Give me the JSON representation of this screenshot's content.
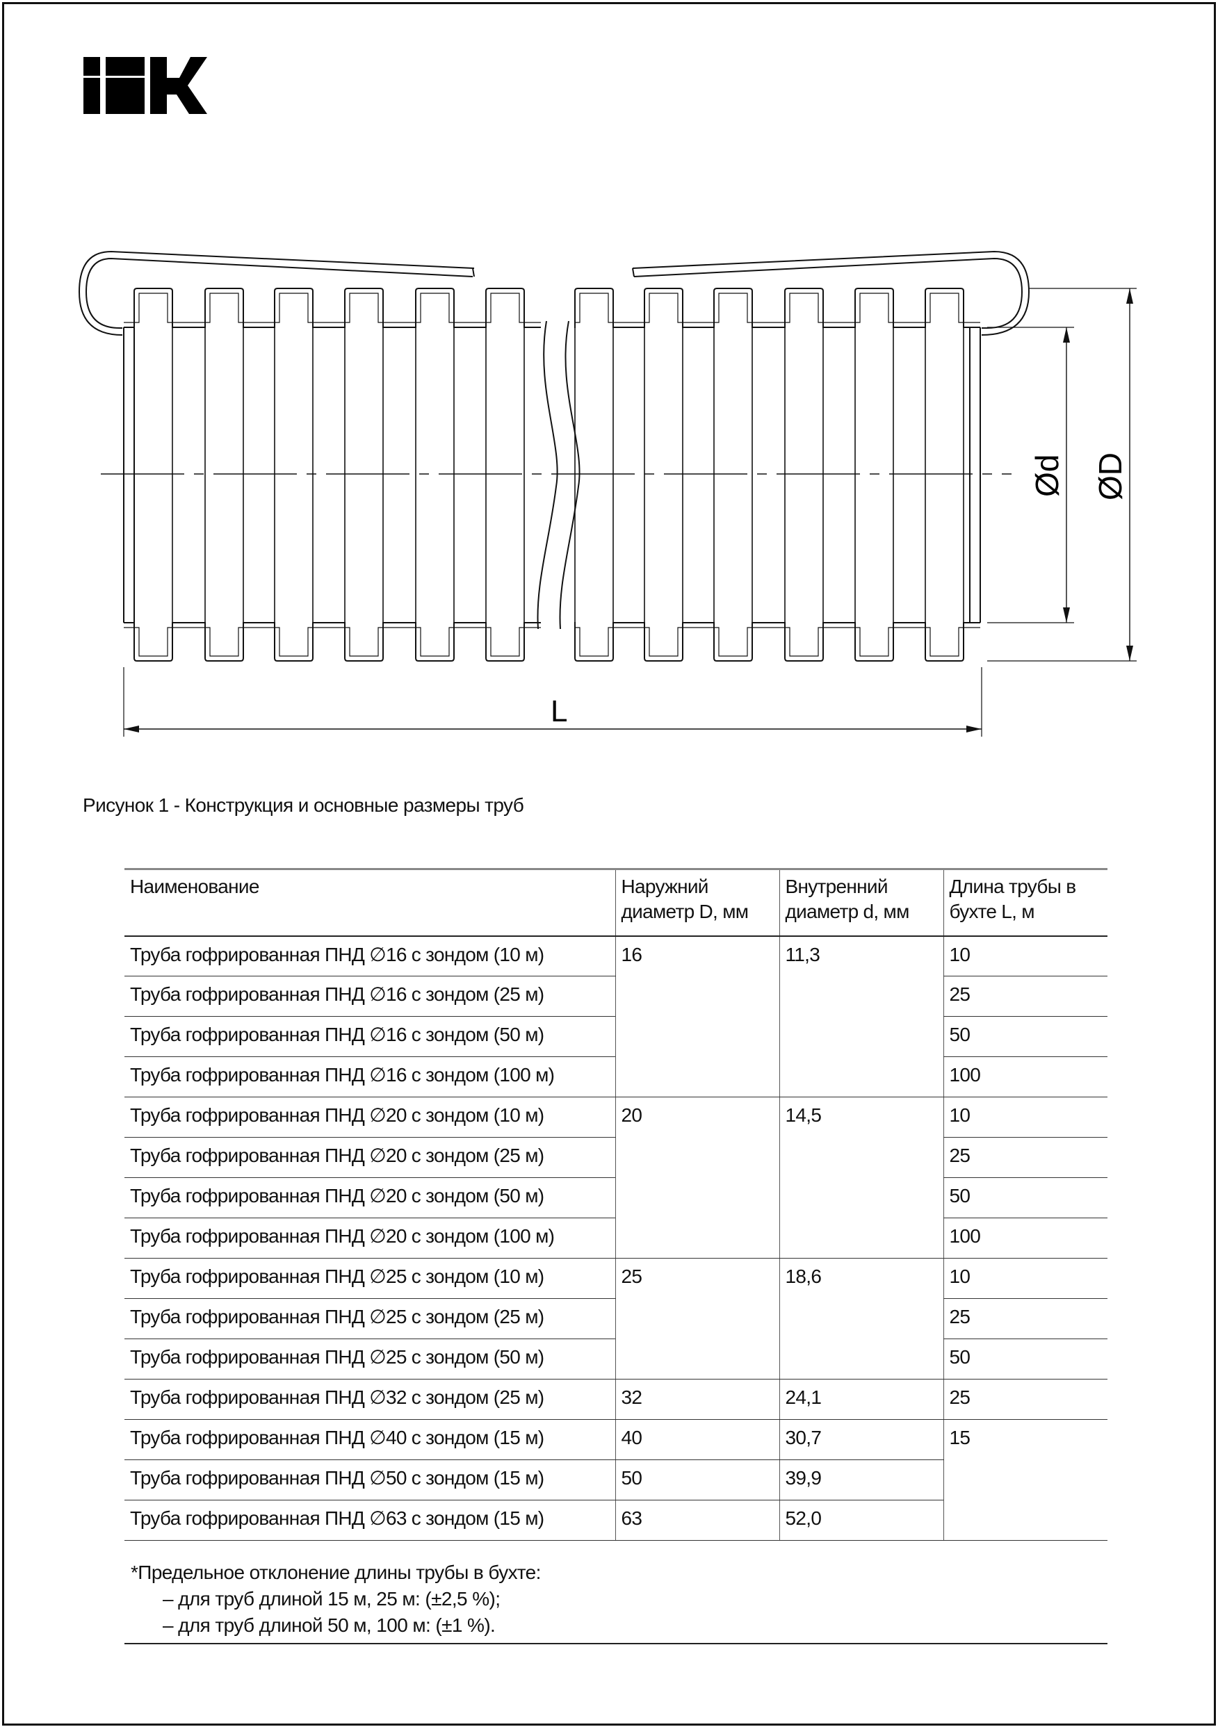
{
  "logo": {
    "text": "IEK"
  },
  "figure": {
    "label_inner_diameter": "Ød",
    "label_outer_diameter": "ØD",
    "label_length": "L",
    "caption": "Рисунок 1 - Конструкция и основные размеры труб"
  },
  "table": {
    "headers": [
      "Наименование",
      "Наружний диаметр D, мм",
      "Внутренний диаметр d, мм",
      "Длина трубы в бухте L, м"
    ],
    "rows": [
      {
        "name": "Труба гофрированная ПНД ∅16 с зондом (10 м)",
        "D": "16",
        "d": "11,3",
        "L": "10"
      },
      {
        "name": "Труба гофрированная ПНД ∅16 с зондом (25 м)",
        "L": "25"
      },
      {
        "name": "Труба гофрированная ПНД ∅16 с зондом (50 м)",
        "L": "50"
      },
      {
        "name": "Труба гофрированная ПНД ∅16 с зондом (100 м)",
        "L": "100"
      },
      {
        "name": "Труба гофрированная ПНД ∅20 с зондом (10 м)",
        "D": "20",
        "d": "14,5",
        "L": "10"
      },
      {
        "name": "Труба гофрированная ПНД ∅20 с зондом (25 м)",
        "L": "25"
      },
      {
        "name": "Труба гофрированная ПНД ∅20 с зондом (50 м)",
        "L": "50"
      },
      {
        "name": "Труба гофрированная ПНД ∅20 с зондом (100 м)",
        "L": "100"
      },
      {
        "name": "Труба гофрированная ПНД ∅25 с зондом (10 м)",
        "D": "25",
        "d": "18,6",
        "L": "10"
      },
      {
        "name": "Труба гофрированная ПНД ∅25 с зондом (25 м)",
        "L": "25"
      },
      {
        "name": "Труба гофрированная ПНД ∅25 с зондом (50 м)",
        "L": "50"
      },
      {
        "name": "Труба гофрированная ПНД ∅32 с зондом (25 м)",
        "D": "32",
        "d": "24,1",
        "L": "25"
      },
      {
        "name": "Труба гофрированная ПНД ∅40 с зондом (15 м)",
        "D": "40",
        "d": "30,7",
        "L": "15"
      },
      {
        "name": "Труба гофрированная ПНД ∅50 с зондом (15 м)",
        "D": "50",
        "d": "39,9"
      },
      {
        "name": "Труба гофрированная ПНД ∅63 с зондом (15 м)",
        "D": "63",
        "d": "52,0"
      }
    ]
  },
  "footnote": {
    "title": "*Предельное отклонение длины трубы в бухте:",
    "items": [
      "– для труб длиной 15 м, 25 м: (±2,5 %);",
      "– для труб длиной 50 м, 100 м: (±1 %)."
    ]
  }
}
